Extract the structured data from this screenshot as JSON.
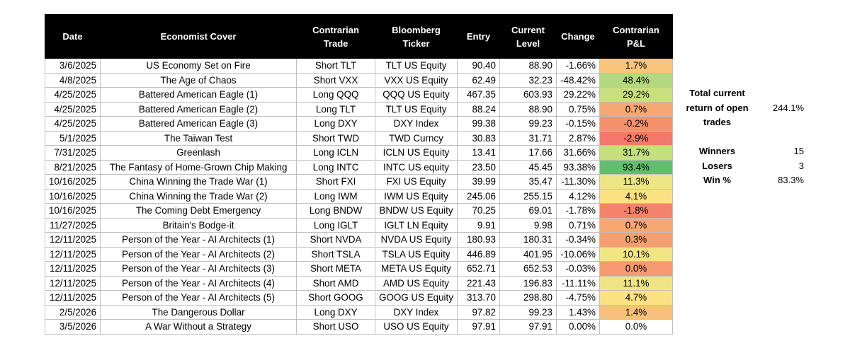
{
  "table": {
    "headers": [
      "Date",
      "Economist Cover",
      "Contrarian\nTrade",
      "Bloomberg\nTicker",
      "Entry",
      "Current\nLevel",
      "Change",
      "Contrarian\nP&L"
    ],
    "rows": [
      {
        "date": "3/6/2025",
        "cover": "US Economy Set on Fire",
        "trade": "Short TLT",
        "ticker": "TLT US Equity",
        "entry": "90.40",
        "current": "88.90",
        "change": "-1.66%",
        "pnl": "1.7%",
        "pnl_color": "#f8c67a"
      },
      {
        "date": "4/8/2025",
        "cover": "The Age of Chaos",
        "trade": "Short VXX",
        "ticker": "VXX US Equity",
        "entry": "62.49",
        "current": "32.23",
        "change": "-48.42%",
        "pnl": "48.4%",
        "pnl_color": "#b2d97d"
      },
      {
        "date": "4/25/2025",
        "cover": "Battered American Eagle (1)",
        "trade": "Long QQQ",
        "ticker": "QQQ US Equity",
        "entry": "467.35",
        "current": "603.93",
        "change": "29.22%",
        "pnl": "29.2%",
        "pnl_color": "#c9e07f"
      },
      {
        "date": "4/25/2025",
        "cover": "Battered American Eagle (2)",
        "trade": "Long TLT",
        "ticker": "TLT US Equity",
        "entry": "88.24",
        "current": "88.90",
        "change": "0.75%",
        "pnl": "0.7%",
        "pnl_color": "#f6a772"
      },
      {
        "date": "4/25/2025",
        "cover": "Battered American Eagle (3)",
        "trade": "Long DXY",
        "ticker": "DXY Index",
        "entry": "99.38",
        "current": "99.23",
        "change": "-0.15%",
        "pnl": "-0.2%",
        "pnl_color": "#f4916d"
      },
      {
        "date": "5/1/2025",
        "cover": "The Taiwan Test",
        "trade": "Short TWD",
        "ticker": "TWD Curncy",
        "entry": "30.83",
        "current": "31.71",
        "change": "2.87%",
        "pnl": "-2.9%",
        "pnl_color": "#f3796c"
      },
      {
        "date": "7/31/2025",
        "cover": "Greenlash",
        "trade": "Long ICLN",
        "ticker": "ICLN US Equity",
        "entry": "13.41",
        "current": "17.66",
        "change": "31.66%",
        "pnl": "31.7%",
        "pnl_color": "#c6df7f"
      },
      {
        "date": "8/21/2025",
        "cover": "The Fantasy of Home-Grown Chip Making",
        "trade": "Long INTC",
        "ticker": "INTC US equity",
        "entry": "23.50",
        "current": "45.45",
        "change": "93.38%",
        "pnl": "93.4%",
        "pnl_color": "#64bd6e"
      },
      {
        "date": "10/16/2025",
        "cover": "China Winning the Trade War (1)",
        "trade": "Short FXI",
        "ticker": "FXI US Equity",
        "entry": "39.99",
        "current": "35.47",
        "change": "-11.30%",
        "pnl": "11.3%",
        "pnl_color": "#eee584"
      },
      {
        "date": "10/16/2025",
        "cover": "China Winning the Trade War (2)",
        "trade": "Long IWM",
        "ticker": "IWM US Equity",
        "entry": "245.06",
        "current": "255.15",
        "change": "4.12%",
        "pnl": "4.1%",
        "pnl_color": "#fde283"
      },
      {
        "date": "10/16/2025",
        "cover": "The Coming Debt Emergency",
        "trade": "Long BNDW",
        "ticker": "BNDW US Equity",
        "entry": "70.25",
        "current": "69.01",
        "change": "-1.78%",
        "pnl": "-1.8%",
        "pnl_color": "#f4836c"
      },
      {
        "date": "11/27/2025",
        "cover": "Britain's Bodge-it",
        "trade": "Long IGLT",
        "ticker": "IGLT LN Equity",
        "entry": "9.91",
        "current": "9.98",
        "change": "0.71%",
        "pnl": "0.7%",
        "pnl_color": "#f6a772"
      },
      {
        "date": "12/11/2025",
        "cover": "Person of the Year - AI Architects (1)",
        "trade": "Short NVDA",
        "ticker": "NVDA US Equity",
        "entry": "180.93",
        "current": "180.31",
        "change": "-0.34%",
        "pnl": "0.3%",
        "pnl_color": "#f59f71"
      },
      {
        "date": "12/11/2025",
        "cover": "Person of the Year - AI Architects (2)",
        "trade": "Short TSLA",
        "ticker": "TSLA US Equity",
        "entry": "446.89",
        "current": "401.95",
        "change": "-10.06%",
        "pnl": "10.1%",
        "pnl_color": "#f2e584"
      },
      {
        "date": "12/11/2025",
        "cover": "Person of the Year - AI Architects (3)",
        "trade": "Short META",
        "ticker": "META US Equity",
        "entry": "652.71",
        "current": "652.53",
        "change": "-0.03%",
        "pnl": "0.0%",
        "pnl_color": "#f59a70"
      },
      {
        "date": "12/11/2025",
        "cover": "Person of the Year - AI Architects (4)",
        "trade": "Short AMD",
        "ticker": "AMD US Equity",
        "entry": "221.43",
        "current": "196.83",
        "change": "-11.11%",
        "pnl": "11.1%",
        "pnl_color": "#efe584"
      },
      {
        "date": "12/11/2025",
        "cover": "Person of the Year - AI Architects (5)",
        "trade": "Short GOOG",
        "ticker": "GOOG US Equity",
        "entry": "313.70",
        "current": "298.80",
        "change": "-4.75%",
        "pnl": "4.7%",
        "pnl_color": "#fde283"
      },
      {
        "date": "2/5/2026",
        "cover": "The Dangerous Dollar",
        "trade": "Long DXY",
        "ticker": "DXY Index",
        "entry": "97.82",
        "current": "99.23",
        "change": "1.43%",
        "pnl": "1.4%",
        "pnl_color": "#f8c07a"
      },
      {
        "date": "3/5/2026",
        "cover": "A War Without a Strategy",
        "trade": "Short USO",
        "ticker": "USO US Equity",
        "entry": "97.91",
        "current": "97.91",
        "change": "0.00%",
        "pnl": "0.0%",
        "pnl_color": "#ffffff"
      }
    ]
  },
  "summary": {
    "total_label": "Total current return of open trades",
    "total_value": "244.1%",
    "winners_label": "Winners",
    "winners_value": "15",
    "losers_label": "Losers",
    "losers_value": "3",
    "win_pct_label": "Win %",
    "win_pct_value": "83.3%"
  }
}
